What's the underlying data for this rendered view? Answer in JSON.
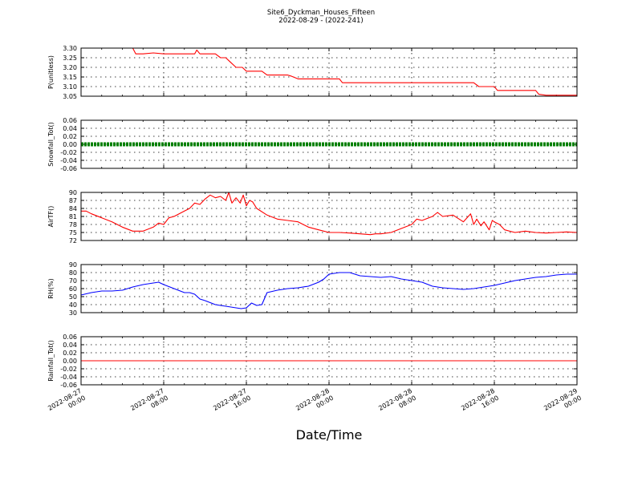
{
  "title": "Site6_Dyckman_Houses_Fifteen",
  "subtitle": "2022-08-29 - (2022-241)",
  "xlabel": "Date/Time",
  "colors": {
    "pressure": "#ff0000",
    "snowfall": "#008000",
    "air_temp": "#ff0000",
    "rh": "#0000ff",
    "rainfall": "#ff0000"
  },
  "chart_data": [
    {
      "type": "line",
      "ylabel": "P(unitless)",
      "ylim": [
        3.05,
        3.3
      ],
      "yticks": [
        "3.05",
        "3.10",
        "3.15",
        "3.20",
        "3.25",
        "3.30"
      ],
      "xlim": [
        "2022-08-27 00:00",
        "2022-08-29 00:00"
      ],
      "xticks": [
        "2022-08-27 00:00",
        "2022-08-27 08:00",
        "2022-08-27 16:00",
        "2022-08-28 00:00",
        "2022-08-28 08:00",
        "2022-08-28 16:00",
        "2022-08-29 00:00"
      ],
      "grid": true,
      "series": [
        {
          "color": "#ff0000",
          "x": [
            0,
            3,
            5,
            5.3,
            6,
            7,
            8,
            10,
            11,
            11.2,
            11.5,
            12,
            13,
            13.5,
            14,
            14.4,
            15,
            15.6,
            16,
            17,
            17.5,
            18,
            19,
            20,
            20.3,
            21,
            22,
            23,
            24,
            25,
            25.3,
            26,
            27,
            28,
            29,
            30,
            31,
            32,
            33,
            34,
            35,
            36,
            37,
            38,
            38.5,
            39,
            40,
            40.3,
            41,
            42,
            43,
            44,
            44.3,
            45,
            46,
            47,
            48
          ],
          "y": [
            3.3,
            3.3,
            3.3,
            3.27,
            3.27,
            3.275,
            3.27,
            3.27,
            3.27,
            3.29,
            3.27,
            3.27,
            3.27,
            3.25,
            3.25,
            3.23,
            3.2,
            3.2,
            3.18,
            3.18,
            3.18,
            3.16,
            3.16,
            3.16,
            3.155,
            3.14,
            3.14,
            3.14,
            3.14,
            3.14,
            3.12,
            3.12,
            3.12,
            3.12,
            3.12,
            3.12,
            3.12,
            3.12,
            3.12,
            3.12,
            3.12,
            3.12,
            3.12,
            3.12,
            3.1,
            3.1,
            3.1,
            3.08,
            3.08,
            3.08,
            3.08,
            3.08,
            3.06,
            3.055,
            3.055,
            3.055,
            3.055
          ]
        }
      ]
    },
    {
      "type": "line",
      "ylabel": "Snowfall_Tot()",
      "ylim": [
        -0.06,
        0.06
      ],
      "yticks": [
        "-0.06",
        "-0.04",
        "-0.02",
        "0.00",
        "0.02",
        "0.04",
        "0.06"
      ],
      "grid": true,
      "series": [
        {
          "color": "#008000",
          "style": "dotted-thick",
          "x": [
            0,
            48
          ],
          "y": [
            0,
            0
          ]
        }
      ]
    },
    {
      "type": "line",
      "ylabel": "AirTF()",
      "ylim": [
        72,
        90
      ],
      "yticks": [
        "72",
        "75",
        "78",
        "81",
        "84",
        "87",
        "90"
      ],
      "grid": true,
      "series": [
        {
          "color": "#ff0000",
          "x": [
            0,
            0.5,
            1,
            2,
            3,
            4,
            5,
            6,
            7,
            7.5,
            8,
            8.5,
            9,
            10,
            10.5,
            11,
            11.5,
            12,
            12.5,
            13,
            13.5,
            14,
            14.3,
            14.6,
            15,
            15.4,
            15.7,
            16,
            16.3,
            16.6,
            17,
            18,
            19,
            20,
            21,
            22,
            23,
            24,
            25,
            26,
            27,
            28,
            28.5,
            29,
            30,
            31,
            32,
            32.5,
            33,
            34,
            34.5,
            35,
            36,
            37,
            37.7,
            38,
            38.3,
            38.7,
            39,
            39.5,
            39.8,
            40,
            40.5,
            41,
            42,
            43,
            44,
            45,
            46,
            47,
            48
          ],
          "y": [
            83,
            83,
            82,
            80.5,
            79,
            77,
            75.5,
            75.5,
            77,
            78.5,
            78,
            80.5,
            81,
            83,
            84,
            86,
            85.5,
            87.5,
            89,
            88,
            88.5,
            87,
            90,
            86,
            88,
            86,
            89,
            85,
            87,
            86.5,
            84,
            81.5,
            80,
            79.5,
            79,
            77,
            76,
            75,
            75,
            74.8,
            74.5,
            74.2,
            74.5,
            74.5,
            75,
            76.5,
            78,
            80,
            79.5,
            81,
            82.5,
            81,
            81.5,
            79,
            82,
            78,
            80,
            77.5,
            79,
            76,
            79.5,
            79,
            78,
            76,
            75,
            75.5,
            75,
            74.8,
            75,
            75.2,
            75
          ]
        }
      ]
    },
    {
      "type": "line",
      "ylabel": "RH(%)",
      "ylim": [
        30,
        90
      ],
      "yticks": [
        "30",
        "40",
        "50",
        "60",
        "70",
        "80",
        "90"
      ],
      "grid": true,
      "series": [
        {
          "color": "#0000ff",
          "x": [
            0,
            1,
            2,
            3,
            4,
            5,
            6,
            7,
            7.5,
            8,
            9,
            10,
            10.5,
            11,
            11.5,
            12,
            13,
            14,
            15,
            15.5,
            16,
            16.5,
            17,
            17.5,
            18,
            19,
            20,
            21,
            22,
            23,
            23.5,
            24,
            25,
            26,
            27,
            28,
            29,
            30,
            31,
            32,
            33,
            34,
            35,
            36,
            37,
            38,
            39,
            40,
            41,
            42,
            43,
            44,
            45,
            46,
            47,
            48
          ],
          "y": [
            52,
            55,
            57,
            57,
            58,
            62,
            65,
            67,
            68,
            65,
            60,
            55,
            55,
            53,
            47,
            45,
            40,
            38,
            36,
            35,
            36,
            42,
            39,
            40,
            55,
            58,
            60,
            61,
            63,
            68,
            72,
            78,
            80,
            80,
            76,
            75,
            74,
            75,
            72,
            70,
            68,
            63,
            61,
            60,
            59,
            60,
            62,
            64,
            67,
            70,
            72,
            74,
            75,
            77,
            78,
            78
          ]
        }
      ]
    },
    {
      "type": "line",
      "ylabel": "Rainfall_Tot()",
      "ylim": [
        -0.06,
        0.06
      ],
      "yticks": [
        "-0.06",
        "-0.04",
        "-0.02",
        "0.00",
        "0.02",
        "0.04",
        "0.06"
      ],
      "grid": true,
      "series": [
        {
          "color": "#ff0000",
          "x": [
            0,
            48
          ],
          "y": [
            0,
            0
          ]
        }
      ]
    }
  ]
}
